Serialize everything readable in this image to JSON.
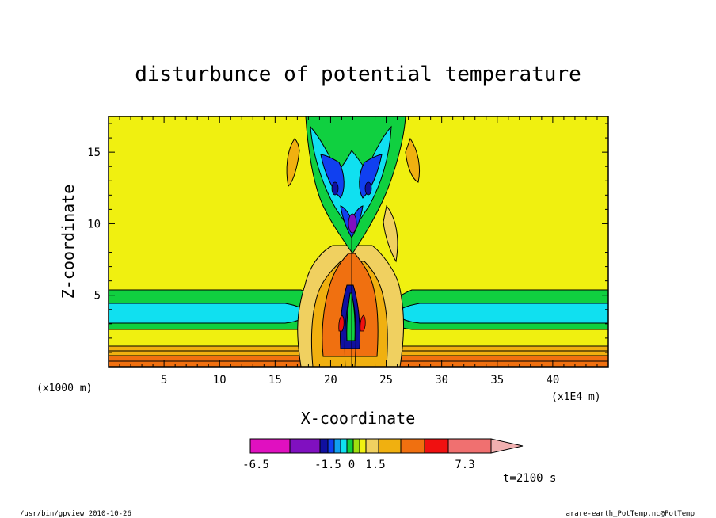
{
  "chart_data": {
    "type": "heatmap",
    "title": "disturbunce of potential temperature",
    "xlabel": "X-coordinate",
    "ylabel": "Z-coordinate",
    "x_unit": "(x1E4 m)",
    "y_unit": "(x1000 m)",
    "x_ticks": [
      5,
      10,
      15,
      20,
      25,
      30,
      35,
      40
    ],
    "y_ticks": [
      5,
      10,
      15
    ],
    "xlim": [
      0,
      45
    ],
    "ylim": [
      0,
      17.5
    ],
    "time_label": "t=2100 s",
    "colorbar": {
      "levels": [
        -6.5,
        -1.5,
        0,
        1.5,
        7.3
      ],
      "labels": [
        "-6.5",
        "-1.5",
        "0",
        "1.5",
        "7.3"
      ],
      "colors": [
        "#e010c0",
        "#8010c0",
        "#1010a0",
        "#1040f0",
        "#10a0f0",
        "#10e0f0",
        "#10d040",
        "#a0e010",
        "#f0f010",
        "#f0d060",
        "#f0b010",
        "#f07010",
        "#f01010",
        "#f07070",
        "#f0b0b0"
      ]
    },
    "description_fields": {
      "stable_layers": [
        {
          "z_range": [
            0,
            1.5
          ],
          "color": "#f0b010"
        },
        {
          "z_range": [
            1.5,
            2.9
          ],
          "color": "#f0f010"
        },
        {
          "z_range": [
            2.9,
            4.6
          ],
          "color": "#10e0f0"
        },
        {
          "z_range": [
            4.6,
            5.6
          ],
          "color": "#10d040"
        }
      ]
    }
  },
  "footer": {
    "left": "/usr/bin/gpview   2010-10-26",
    "right": "arare-earth_PotTemp.nc@PotTemp"
  },
  "colors": {
    "background_field": "#f0f010"
  }
}
